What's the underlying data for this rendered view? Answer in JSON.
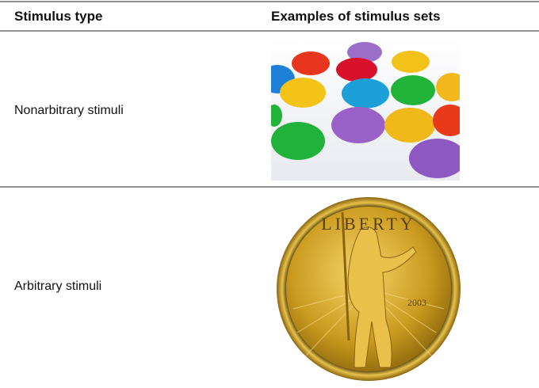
{
  "table": {
    "header": [
      "Stimulus type",
      "Examples of stimulus sets"
    ],
    "rows": [
      [
        "Nonarbitrary stimuli"
      ],
      [
        "Arbitrary stimuli"
      ]
    ]
  },
  "coin": {
    "inscription": "LIBERTY",
    "year": "2003"
  }
}
